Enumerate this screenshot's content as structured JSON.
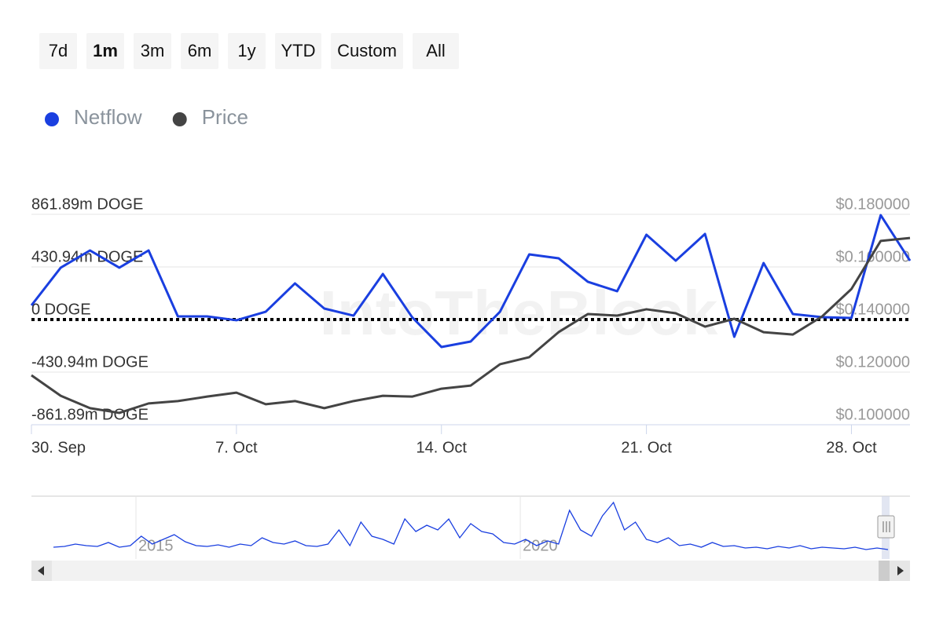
{
  "chart_data": {
    "type": "line",
    "range_buttons": [
      "7d",
      "1m",
      "3m",
      "6m",
      "1y",
      "YTD",
      "Custom",
      "All"
    ],
    "selected_button": "1m",
    "watermark": "IntoTheBlock",
    "categories": [
      "30. Sep",
      null,
      null,
      null,
      null,
      null,
      null,
      "7. Oct",
      null,
      null,
      null,
      null,
      null,
      null,
      "14. Oct",
      null,
      null,
      null,
      null,
      null,
      null,
      "21. Oct",
      null,
      null,
      null,
      null,
      null,
      null,
      "28. Oct",
      null,
      null
    ],
    "series": [
      {
        "name": "Netflow",
        "color": "#1a3fe0",
        "axis": "y",
        "values": [
          116,
          425,
          566,
          425,
          566,
          26,
          26,
          -6,
          64,
          296,
          90,
          32,
          373,
          19,
          -225,
          -180,
          64,
          534,
          502,
          309,
          232,
          695,
          482,
          701,
          -141,
          463,
          45,
          19,
          13,
          855,
          482
        ]
      },
      {
        "name": "Price",
        "color": "#444444",
        "axis": "y2",
        "values": [
          0.1188,
          0.111,
          0.1063,
          0.1045,
          0.1081,
          0.109,
          0.1107,
          0.1122,
          0.1078,
          0.109,
          0.1063,
          0.109,
          0.111,
          0.1107,
          0.1137,
          0.1149,
          0.123,
          0.1257,
          0.1352,
          0.1421,
          0.1415,
          0.1439,
          0.1424,
          0.1373,
          0.1403,
          0.1352,
          0.1343,
          0.1412,
          0.1516,
          0.1699,
          0.171
        ]
      }
    ],
    "ylim": [
      -861.89,
      861.89
    ],
    "yticks": [
      {
        "value": -861.89,
        "label": "-861.89m DOGE"
      },
      {
        "value": -430.94,
        "label": "-430.94m DOGE"
      },
      {
        "value": 0,
        "label": "0 DOGE"
      },
      {
        "value": 430.94,
        "label": "430.94m DOGE"
      },
      {
        "value": 861.89,
        "label": "861.89m DOGE"
      }
    ],
    "y2lim": [
      0.1,
      0.18
    ],
    "y2ticks": [
      {
        "value": 0.1,
        "label": "$0.100000"
      },
      {
        "value": 0.12,
        "label": "$0.120000"
      },
      {
        "value": 0.14,
        "label": "$0.140000"
      },
      {
        "value": 0.16,
        "label": "$0.160000"
      },
      {
        "value": 0.18,
        "label": "$0.180000"
      }
    ],
    "grid": true,
    "legend": "top-left",
    "navigator": {
      "color": "#1a3fe0",
      "xlim": [
        2013.64,
        2025.07
      ],
      "xticks": [
        2015,
        2020
      ],
      "ylim": [
        0,
        70
      ],
      "values": [
        8,
        9,
        12,
        10,
        9,
        14,
        8,
        10,
        22,
        12,
        18,
        24,
        15,
        10,
        9,
        11,
        8,
        12,
        10,
        20,
        14,
        12,
        16,
        10,
        9,
        12,
        30,
        10,
        40,
        22,
        18,
        12,
        44,
        28,
        36,
        30,
        44,
        20,
        38,
        28,
        25,
        14,
        12,
        18,
        10,
        16,
        12,
        55,
        30,
        22,
        48,
        65,
        30,
        40,
        18,
        14,
        20,
        10,
        12,
        8,
        14,
        9,
        10,
        7,
        8,
        6,
        9,
        7,
        10,
        6,
        8,
        7,
        6,
        8,
        5,
        7,
        5
      ]
    }
  }
}
